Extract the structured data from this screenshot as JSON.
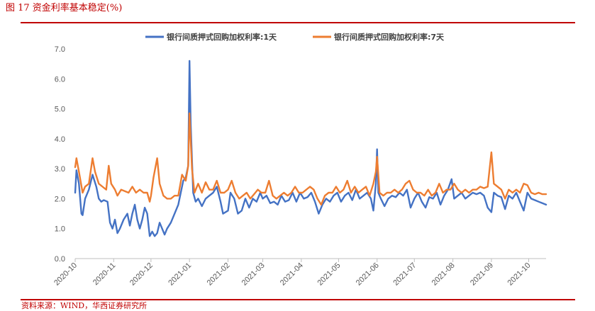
{
  "figure_title": "图 17   资金利率基本稳定(%)",
  "source": "资料来源：WIND，华西证券研究所",
  "chart_data": {
    "type": "line",
    "xlabel": "",
    "ylabel": "",
    "ylim": [
      0.0,
      7.0
    ],
    "y_ticks": [
      "0.0",
      "1.0",
      "2.0",
      "3.0",
      "4.0",
      "5.0",
      "6.0",
      "7.0"
    ],
    "x_ticks": [
      "2020-10",
      "2020-11",
      "2020-12",
      "2021-01",
      "2021-02",
      "2021-03",
      "2021-04",
      "2021-05",
      "2021-06",
      "2021-07",
      "2021-08",
      "2021-09",
      "2021-10"
    ],
    "x_range": [
      "2020-10-01",
      "2021-10-15"
    ],
    "grid": false,
    "legend": "top",
    "series": [
      {
        "name": "银行间质押式回购加权利率:1天",
        "color": "#4472c4",
        "points": [
          [
            "2020-10-01",
            2.2
          ],
          [
            "2020-10-02",
            2.95
          ],
          [
            "2020-10-04",
            2.5
          ],
          [
            "2020-10-06",
            1.5
          ],
          [
            "2020-10-07",
            1.45
          ],
          [
            "2020-10-09",
            2.0
          ],
          [
            "2020-10-12",
            2.3
          ],
          [
            "2020-10-15",
            2.8
          ],
          [
            "2020-10-18",
            2.4
          ],
          [
            "2020-10-20",
            2.0
          ],
          [
            "2020-10-22",
            1.9
          ],
          [
            "2020-10-24",
            1.95
          ],
          [
            "2020-10-27",
            1.9
          ],
          [
            "2020-10-29",
            1.2
          ],
          [
            "2020-10-31",
            1.0
          ],
          [
            "2020-11-02",
            1.3
          ],
          [
            "2020-11-04",
            0.85
          ],
          [
            "2020-11-06",
            1.0
          ],
          [
            "2020-11-09",
            1.3
          ],
          [
            "2020-11-12",
            1.5
          ],
          [
            "2020-11-14",
            1.1
          ],
          [
            "2020-11-16",
            1.5
          ],
          [
            "2020-11-18",
            1.8
          ],
          [
            "2020-11-20",
            1.3
          ],
          [
            "2020-11-22",
            1.0
          ],
          [
            "2020-11-24",
            1.3
          ],
          [
            "2020-11-26",
            1.7
          ],
          [
            "2020-11-28",
            1.5
          ],
          [
            "2020-11-30",
            0.75
          ],
          [
            "2020-12-02",
            0.9
          ],
          [
            "2020-12-04",
            0.75
          ],
          [
            "2020-12-06",
            0.85
          ],
          [
            "2020-12-08",
            1.2
          ],
          [
            "2020-12-10",
            1.0
          ],
          [
            "2020-12-12",
            0.8
          ],
          [
            "2020-12-14",
            1.0
          ],
          [
            "2020-12-17",
            1.2
          ],
          [
            "2020-12-20",
            1.5
          ],
          [
            "2020-12-23",
            1.8
          ],
          [
            "2020-12-25",
            2.2
          ],
          [
            "2020-12-27",
            2.6
          ],
          [
            "2020-12-29",
            2.7
          ],
          [
            "2020-12-31",
            3.1
          ],
          [
            "2021-01-01",
            6.6
          ],
          [
            "2021-01-02",
            4.5
          ],
          [
            "2021-01-04",
            2.2
          ],
          [
            "2021-01-06",
            1.9
          ],
          [
            "2021-01-08",
            2.0
          ],
          [
            "2021-01-11",
            1.75
          ],
          [
            "2021-01-14",
            2.0
          ],
          [
            "2021-01-17",
            2.1
          ],
          [
            "2021-01-20",
            2.2
          ],
          [
            "2021-01-23",
            2.4
          ],
          [
            "2021-01-26",
            1.9
          ],
          [
            "2021-01-28",
            1.5
          ],
          [
            "2021-02-01",
            1.6
          ],
          [
            "2021-02-03",
            2.2
          ],
          [
            "2021-02-06",
            2.0
          ],
          [
            "2021-02-09",
            1.5
          ],
          [
            "2021-02-12",
            1.6
          ],
          [
            "2021-02-15",
            2.0
          ],
          [
            "2021-02-18",
            1.7
          ],
          [
            "2021-02-21",
            2.0
          ],
          [
            "2021-02-24",
            1.9
          ],
          [
            "2021-02-27",
            2.2
          ],
          [
            "2021-03-01",
            2.0
          ],
          [
            "2021-03-04",
            2.1
          ],
          [
            "2021-03-07",
            1.85
          ],
          [
            "2021-03-10",
            1.9
          ],
          [
            "2021-03-13",
            1.8
          ],
          [
            "2021-03-16",
            2.1
          ],
          [
            "2021-03-19",
            1.9
          ],
          [
            "2021-03-22",
            1.95
          ],
          [
            "2021-03-25",
            2.2
          ],
          [
            "2021-03-28",
            1.9
          ],
          [
            "2021-03-31",
            2.2
          ],
          [
            "2021-04-03",
            2.0
          ],
          [
            "2021-04-06",
            2.05
          ],
          [
            "2021-04-09",
            2.2
          ],
          [
            "2021-04-12",
            1.9
          ],
          [
            "2021-04-15",
            1.5
          ],
          [
            "2021-04-18",
            1.8
          ],
          [
            "2021-04-21",
            2.0
          ],
          [
            "2021-04-24",
            1.9
          ],
          [
            "2021-04-27",
            2.1
          ],
          [
            "2021-04-30",
            2.2
          ],
          [
            "2021-05-03",
            1.9
          ],
          [
            "2021-05-06",
            2.1
          ],
          [
            "2021-05-09",
            2.2
          ],
          [
            "2021-05-12",
            1.95
          ],
          [
            "2021-05-15",
            2.3
          ],
          [
            "2021-05-18",
            2.0
          ],
          [
            "2021-05-21",
            2.1
          ],
          [
            "2021-05-24",
            2.2
          ],
          [
            "2021-05-27",
            2.0
          ],
          [
            "2021-05-29",
            1.6
          ],
          [
            "2021-05-31",
            2.5
          ],
          [
            "2021-06-01",
            3.65
          ],
          [
            "2021-06-02",
            2.2
          ],
          [
            "2021-06-04",
            2.0
          ],
          [
            "2021-06-07",
            1.75
          ],
          [
            "2021-06-10",
            2.0
          ],
          [
            "2021-06-13",
            2.1
          ],
          [
            "2021-06-16",
            2.05
          ],
          [
            "2021-06-19",
            2.2
          ],
          [
            "2021-06-22",
            2.1
          ],
          [
            "2021-06-25",
            2.3
          ],
          [
            "2021-06-28",
            1.7
          ],
          [
            "2021-07-01",
            2.0
          ],
          [
            "2021-07-04",
            2.2
          ],
          [
            "2021-07-07",
            1.9
          ],
          [
            "2021-07-10",
            1.7
          ],
          [
            "2021-07-13",
            2.05
          ],
          [
            "2021-07-16",
            2.0
          ],
          [
            "2021-07-19",
            2.2
          ],
          [
            "2021-07-22",
            1.8
          ],
          [
            "2021-07-25",
            2.1
          ],
          [
            "2021-07-28",
            2.3
          ],
          [
            "2021-07-31",
            2.65
          ],
          [
            "2021-08-02",
            2.0
          ],
          [
            "2021-08-05",
            2.1
          ],
          [
            "2021-08-08",
            2.2
          ],
          [
            "2021-08-11",
            2.0
          ],
          [
            "2021-08-14",
            2.1
          ],
          [
            "2021-08-17",
            2.2
          ],
          [
            "2021-08-20",
            2.15
          ],
          [
            "2021-08-23",
            2.2
          ],
          [
            "2021-08-26",
            2.1
          ],
          [
            "2021-08-29",
            1.7
          ],
          [
            "2021-09-01",
            1.55
          ],
          [
            "2021-09-03",
            2.2
          ],
          [
            "2021-09-06",
            2.1
          ],
          [
            "2021-09-09",
            2.05
          ],
          [
            "2021-09-12",
            1.65
          ],
          [
            "2021-09-15",
            2.1
          ],
          [
            "2021-09-18",
            2.0
          ],
          [
            "2021-09-21",
            2.2
          ],
          [
            "2021-09-24",
            1.9
          ],
          [
            "2021-09-27",
            1.6
          ],
          [
            "2021-09-30",
            2.2
          ],
          [
            "2021-10-03",
            2.0
          ],
          [
            "2021-10-06",
            1.95
          ],
          [
            "2021-10-09",
            1.9
          ],
          [
            "2021-10-12",
            1.85
          ],
          [
            "2021-10-15",
            1.8
          ]
        ]
      },
      {
        "name": "银行间质押式回购加权利率:7天",
        "color": "#ed7d31",
        "points": [
          [
            "2020-10-01",
            3.05
          ],
          [
            "2020-10-02",
            3.35
          ],
          [
            "2020-10-04",
            2.9
          ],
          [
            "2020-10-07",
            2.2
          ],
          [
            "2020-10-09",
            2.4
          ],
          [
            "2020-10-12",
            2.5
          ],
          [
            "2020-10-15",
            3.35
          ],
          [
            "2020-10-17",
            2.9
          ],
          [
            "2020-10-20",
            2.5
          ],
          [
            "2020-10-23",
            2.4
          ],
          [
            "2020-10-26",
            2.3
          ],
          [
            "2020-10-28",
            3.1
          ],
          [
            "2020-10-30",
            2.5
          ],
          [
            "2020-11-02",
            2.3
          ],
          [
            "2020-11-04",
            2.1
          ],
          [
            "2020-11-07",
            2.3
          ],
          [
            "2020-11-10",
            2.25
          ],
          [
            "2020-11-13",
            2.2
          ],
          [
            "2020-11-16",
            2.4
          ],
          [
            "2020-11-19",
            2.2
          ],
          [
            "2020-11-22",
            2.3
          ],
          [
            "2020-11-25",
            2.2
          ],
          [
            "2020-11-28",
            2.2
          ],
          [
            "2020-11-30",
            1.9
          ],
          [
            "2020-12-01",
            2.1
          ],
          [
            "2020-12-03",
            2.7
          ],
          [
            "2020-12-06",
            3.35
          ],
          [
            "2020-12-08",
            2.5
          ],
          [
            "2020-12-11",
            2.1
          ],
          [
            "2020-12-14",
            2.0
          ],
          [
            "2020-12-17",
            2.0
          ],
          [
            "2020-12-20",
            2.1
          ],
          [
            "2020-12-23",
            2.1
          ],
          [
            "2020-12-26",
            2.8
          ],
          [
            "2020-12-29",
            2.6
          ],
          [
            "2020-12-31",
            3.1
          ],
          [
            "2021-01-01",
            4.85
          ],
          [
            "2021-01-03",
            3.0
          ],
          [
            "2021-01-05",
            2.2
          ],
          [
            "2021-01-08",
            2.5
          ],
          [
            "2021-01-11",
            2.2
          ],
          [
            "2021-01-14",
            2.55
          ],
          [
            "2021-01-17",
            2.3
          ],
          [
            "2021-01-20",
            2.3
          ],
          [
            "2021-01-23",
            2.6
          ],
          [
            "2021-01-26",
            2.2
          ],
          [
            "2021-01-29",
            2.2
          ],
          [
            "2021-02-01",
            2.3
          ],
          [
            "2021-02-04",
            2.6
          ],
          [
            "2021-02-07",
            2.2
          ],
          [
            "2021-02-10",
            2.0
          ],
          [
            "2021-02-13",
            2.1
          ],
          [
            "2021-02-16",
            2.2
          ],
          [
            "2021-02-19",
            2.0
          ],
          [
            "2021-02-22",
            2.15
          ],
          [
            "2021-02-25",
            2.3
          ],
          [
            "2021-02-28",
            2.2
          ],
          [
            "2021-03-03",
            2.2
          ],
          [
            "2021-03-06",
            2.6
          ],
          [
            "2021-03-09",
            2.1
          ],
          [
            "2021-03-12",
            2.0
          ],
          [
            "2021-03-15",
            2.1
          ],
          [
            "2021-03-18",
            2.2
          ],
          [
            "2021-03-21",
            2.1
          ],
          [
            "2021-03-24",
            2.2
          ],
          [
            "2021-03-27",
            2.4
          ],
          [
            "2021-03-30",
            2.2
          ],
          [
            "2021-04-02",
            2.2
          ],
          [
            "2021-04-05",
            2.3
          ],
          [
            "2021-04-08",
            2.4
          ],
          [
            "2021-04-11",
            2.3
          ],
          [
            "2021-04-14",
            2.0
          ],
          [
            "2021-04-17",
            1.8
          ],
          [
            "2021-04-20",
            2.1
          ],
          [
            "2021-04-23",
            2.2
          ],
          [
            "2021-04-26",
            2.2
          ],
          [
            "2021-04-29",
            2.4
          ],
          [
            "2021-05-02",
            2.2
          ],
          [
            "2021-05-05",
            2.3
          ],
          [
            "2021-05-08",
            2.6
          ],
          [
            "2021-05-11",
            2.2
          ],
          [
            "2021-05-14",
            2.4
          ],
          [
            "2021-05-17",
            2.2
          ],
          [
            "2021-05-20",
            2.3
          ],
          [
            "2021-05-23",
            2.4
          ],
          [
            "2021-05-26",
            2.1
          ],
          [
            "2021-05-29",
            2.5
          ],
          [
            "2021-05-31",
            2.9
          ],
          [
            "2021-06-01",
            3.4
          ],
          [
            "2021-06-03",
            2.2
          ],
          [
            "2021-06-06",
            2.1
          ],
          [
            "2021-06-09",
            2.2
          ],
          [
            "2021-06-12",
            2.2
          ],
          [
            "2021-06-15",
            2.3
          ],
          [
            "2021-06-18",
            2.2
          ],
          [
            "2021-06-21",
            2.3
          ],
          [
            "2021-06-24",
            2.5
          ],
          [
            "2021-06-27",
            2.6
          ],
          [
            "2021-06-30",
            2.3
          ],
          [
            "2021-07-03",
            2.2
          ],
          [
            "2021-07-06",
            2.2
          ],
          [
            "2021-07-09",
            2.1
          ],
          [
            "2021-07-12",
            2.3
          ],
          [
            "2021-07-15",
            2.1
          ],
          [
            "2021-07-18",
            2.2
          ],
          [
            "2021-07-21",
            2.5
          ],
          [
            "2021-07-24",
            2.2
          ],
          [
            "2021-07-27",
            2.3
          ],
          [
            "2021-07-30",
            2.3
          ],
          [
            "2021-08-02",
            2.5
          ],
          [
            "2021-08-05",
            2.3
          ],
          [
            "2021-08-08",
            2.2
          ],
          [
            "2021-08-11",
            2.3
          ],
          [
            "2021-08-14",
            2.2
          ],
          [
            "2021-08-17",
            2.3
          ],
          [
            "2021-08-20",
            2.3
          ],
          [
            "2021-08-23",
            2.4
          ],
          [
            "2021-08-26",
            2.35
          ],
          [
            "2021-08-29",
            2.4
          ],
          [
            "2021-09-01",
            3.55
          ],
          [
            "2021-09-03",
            2.5
          ],
          [
            "2021-09-06",
            2.4
          ],
          [
            "2021-09-09",
            2.3
          ],
          [
            "2021-09-12",
            2.0
          ],
          [
            "2021-09-15",
            2.3
          ],
          [
            "2021-09-18",
            2.2
          ],
          [
            "2021-09-21",
            2.3
          ],
          [
            "2021-09-24",
            2.2
          ],
          [
            "2021-09-27",
            2.5
          ],
          [
            "2021-09-30",
            2.45
          ],
          [
            "2021-10-03",
            2.2
          ],
          [
            "2021-10-06",
            2.15
          ],
          [
            "2021-10-09",
            2.2
          ],
          [
            "2021-10-12",
            2.15
          ],
          [
            "2021-10-15",
            2.15
          ]
        ]
      }
    ]
  }
}
